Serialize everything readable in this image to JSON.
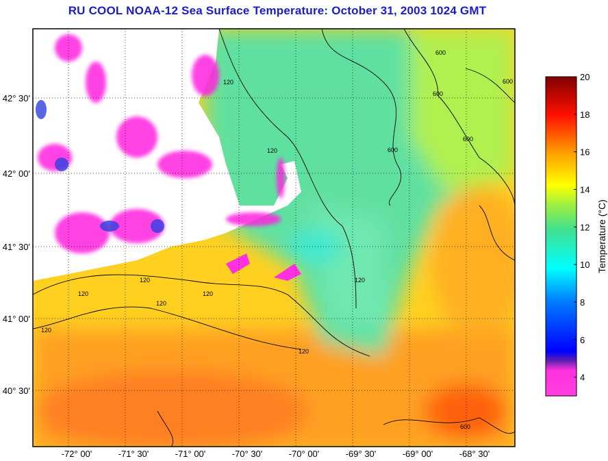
{
  "title": "RU COOL  NOAA-12  Sea Surface Temperature:  October 31, 2003 1024 GMT",
  "map": {
    "longitude_labels": [
      "-72° 00'",
      "-71° 30'",
      "-71° 00'",
      "-70° 30'",
      "-70° 00'",
      "-69° 30'",
      "-69° 00'",
      "-68° 30'"
    ],
    "latitude_labels": [
      "42° 30'",
      "42° 00'",
      "41° 30'",
      "41° 00'",
      "40° 30'"
    ],
    "contour_labels": [
      "120",
      "120",
      "120",
      "120",
      "120",
      "120",
      "120",
      "120",
      "600",
      "600",
      "600",
      "600",
      "600",
      "600"
    ]
  },
  "colorbar": {
    "label": "Temperature (°C)",
    "min": 3,
    "max": 20,
    "ticks": [
      "20",
      "18",
      "16",
      "14",
      "12",
      "10",
      "8",
      "6",
      "4"
    ],
    "colors": [
      "#ff40d0",
      "#ff20e0",
      "#5020c0",
      "#0000ff",
      "#0070ff",
      "#00ffff",
      "#40e0a0",
      "#a0f040",
      "#ffff00",
      "#ffa000",
      "#ff4000",
      "#ff0000",
      "#800000"
    ]
  }
}
